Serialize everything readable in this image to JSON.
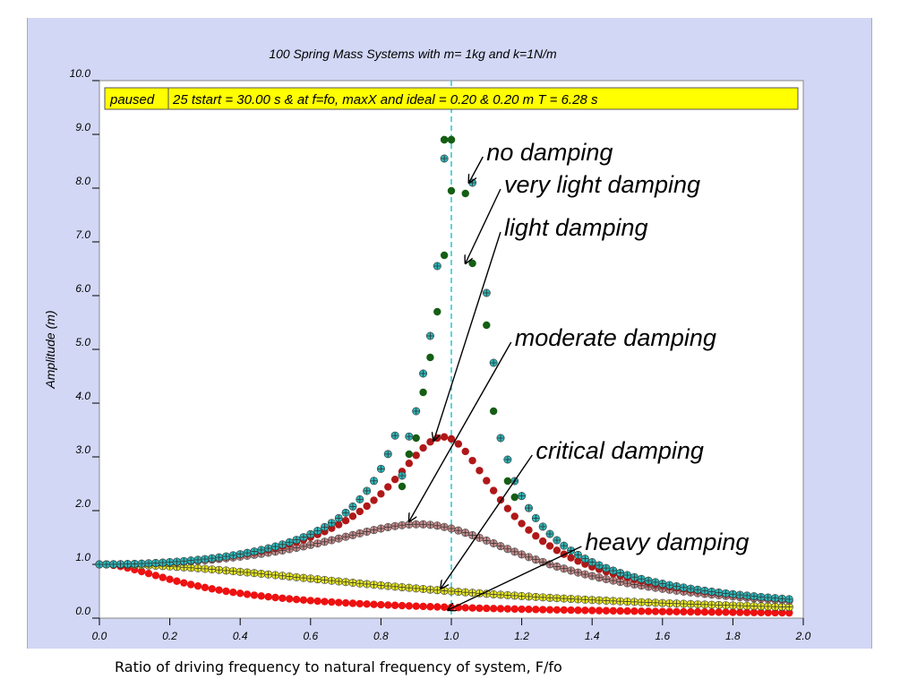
{
  "chart_data": {
    "type": "scatter",
    "title": "100 Spring Mass Systems with m= 1kg and k=1N/m",
    "status": {
      "label": "paused",
      "text": "25 tstart = 30.00 s & at f=fo, maxX and ideal = 0.20 & 0.20 m T = 6.28 s"
    },
    "xlabel": "Ratio of driving frequency to natural frequency of system, F/fo",
    "ylabel": "Amplitude (m)",
    "xlim": [
      0,
      2
    ],
    "ylim": [
      0,
      10
    ],
    "xticks": [
      "0.0",
      "0.2",
      "0.4",
      "0.6",
      "0.8",
      "1.0",
      "1.2",
      "1.4",
      "1.6",
      "1.8",
      "2.0"
    ],
    "yticks": [
      "0.0",
      "1.0",
      "2.0",
      "3.0",
      "4.0",
      "5.0",
      "6.0",
      "7.0",
      "8.0",
      "9.0",
      "10.0"
    ],
    "resonance_x": 1.0,
    "x_step": 0.02,
    "x_max": 1.97,
    "series": [
      {
        "name": "no damping",
        "zeta": 0.0,
        "cap": 8.9,
        "color": "#2bb5b8",
        "marker": "plus",
        "sparse": [
          [
            0.86,
            2.65
          ],
          [
            0.88,
            3.38
          ],
          [
            0.9,
            3.85
          ],
          [
            0.92,
            4.55
          ],
          [
            0.94,
            5.25
          ],
          [
            0.96,
            6.55
          ],
          [
            0.98,
            8.55
          ],
          [
            1.06,
            8.1
          ],
          [
            1.1,
            6.05
          ],
          [
            1.12,
            4.75
          ],
          [
            1.14,
            3.35
          ],
          [
            1.16,
            2.95
          ],
          [
            1.18,
            2.55
          ]
        ]
      },
      {
        "name": "very light damping",
        "zeta": 0.0,
        "cap": 8.9,
        "color": "#155e15",
        "marker": "dot",
        "sparse": [
          [
            0.86,
            2.45
          ],
          [
            0.88,
            3.05
          ],
          [
            0.9,
            3.35
          ],
          [
            0.92,
            4.2
          ],
          [
            0.94,
            4.85
          ],
          [
            0.96,
            5.7
          ],
          [
            0.98,
            6.75
          ],
          [
            1.0,
            7.95
          ],
          [
            1.04,
            7.9
          ],
          [
            1.06,
            6.6
          ],
          [
            1.1,
            5.45
          ],
          [
            1.12,
            3.85
          ],
          [
            1.14,
            3.35
          ],
          [
            1.16,
            2.55
          ],
          [
            1.18,
            2.25
          ]
        ]
      },
      {
        "name": "light damping",
        "zeta": 0.15,
        "color": "#b01818",
        "marker": "dot"
      },
      {
        "name": "moderate damping",
        "zeta": 0.3,
        "color": "#c48a8a",
        "marker": "plus"
      },
      {
        "name": "critical damping",
        "zeta": 1.0,
        "color": "#e8e820",
        "marker": "plus"
      },
      {
        "name": "heavy damping",
        "zeta": 2.5,
        "color": "#ee1111",
        "marker": "dot"
      }
    ],
    "annotations": [
      {
        "text": "no damping",
        "x": 1.1,
        "y": 8.65,
        "arrow_to": [
          1.05,
          8.1
        ]
      },
      {
        "text": "very light damping",
        "x": 1.15,
        "y": 8.05,
        "arrow_to": [
          1.04,
          6.6
        ]
      },
      {
        "text": "light damping",
        "x": 1.15,
        "y": 7.25,
        "arrow_to": [
          0.95,
          3.3
        ]
      },
      {
        "text": "moderate damping",
        "x": 1.18,
        "y": 5.2,
        "arrow_to": [
          0.88,
          1.8
        ]
      },
      {
        "text": "critical damping",
        "x": 1.24,
        "y": 3.1,
        "arrow_to": [
          0.97,
          0.55
        ]
      },
      {
        "text": "heavy damping",
        "x": 1.38,
        "y": 1.4,
        "arrow_to": [
          0.99,
          0.15
        ]
      }
    ]
  }
}
